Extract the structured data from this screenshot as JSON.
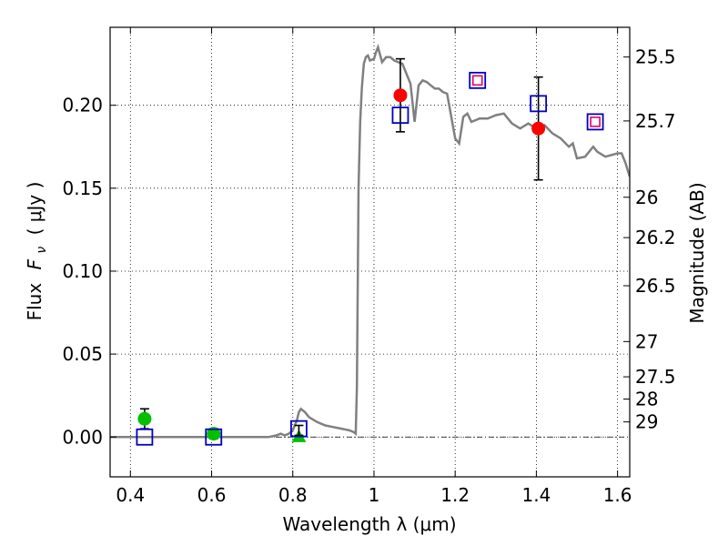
{
  "chart_data": {
    "type": "scatter",
    "xlabel": "Wavelength  λ (μm)",
    "ylabel": "Flux  F_ν  ( μJy )",
    "ylabel_parts": {
      "prefix": "Flux",
      "symbol": "F",
      "subscript": "ν",
      "unit": "( μJy )"
    },
    "y2label": "Magnitude (AB)",
    "xlim": [
      0.35,
      1.63
    ],
    "ylim": [
      -0.024,
      0.247
    ],
    "grid": true,
    "x_ticks": [
      {
        "value": 0.4,
        "label": "0.4"
      },
      {
        "value": 0.6,
        "label": "0.6"
      },
      {
        "value": 0.8,
        "label": "0.8"
      },
      {
        "value": 1.0,
        "label": "1"
      },
      {
        "value": 1.2,
        "label": "1.2"
      },
      {
        "value": 1.4,
        "label": "1.4"
      },
      {
        "value": 1.6,
        "label": "1.6"
      }
    ],
    "y_ticks": [
      {
        "value": 0.0,
        "label": "0.00"
      },
      {
        "value": 0.05,
        "label": "0.05"
      },
      {
        "value": 0.1,
        "label": "0.10"
      },
      {
        "value": 0.15,
        "label": "0.15"
      },
      {
        "value": 0.2,
        "label": "0.20"
      }
    ],
    "y2_ticks": [
      {
        "value": 25.5,
        "label": "25.5"
      },
      {
        "value": 25.7,
        "label": "25.7"
      },
      {
        "value": 26.0,
        "label": "26"
      },
      {
        "value": 26.2,
        "label": "26.2"
      },
      {
        "value": 26.5,
        "label": "26.5"
      },
      {
        "value": 27.0,
        "label": "27"
      },
      {
        "value": 27.5,
        "label": "27.5"
      },
      {
        "value": 28.0,
        "label": "28"
      },
      {
        "value": 29.0,
        "label": "29"
      }
    ],
    "model_spectrum": {
      "color": "#808080",
      "x": [
        0.35,
        0.5,
        0.6,
        0.7,
        0.74,
        0.76,
        0.77,
        0.78,
        0.79,
        0.8,
        0.81,
        0.815,
        0.82,
        0.83,
        0.84,
        0.86,
        0.88,
        0.9,
        0.92,
        0.94,
        0.95,
        0.955,
        0.958,
        0.962,
        0.966,
        0.97,
        0.975,
        0.98,
        0.985,
        0.99,
        1.0,
        1.005,
        1.01,
        1.02,
        1.03,
        1.04,
        1.05,
        1.06,
        1.07,
        1.08,
        1.09,
        1.1,
        1.11,
        1.12,
        1.13,
        1.14,
        1.15,
        1.16,
        1.17,
        1.18,
        1.2,
        1.21,
        1.22,
        1.23,
        1.24,
        1.25,
        1.26,
        1.27,
        1.28,
        1.3,
        1.32,
        1.34,
        1.36,
        1.38,
        1.4,
        1.42,
        1.44,
        1.46,
        1.48,
        1.49,
        1.5,
        1.52,
        1.54,
        1.55,
        1.57,
        1.6,
        1.61,
        1.62,
        1.63
      ],
      "y": [
        0.0,
        0.0,
        0.0,
        0.0,
        0.0,
        0.001,
        0.002,
        0.001,
        0.002,
        0.004,
        0.01,
        0.015,
        0.017,
        0.015,
        0.012,
        0.009,
        0.007,
        0.006,
        0.005,
        0.004,
        0.003,
        0.002,
        0.03,
        0.15,
        0.19,
        0.21,
        0.225,
        0.229,
        0.23,
        0.227,
        0.228,
        0.232,
        0.235,
        0.226,
        0.229,
        0.229,
        0.227,
        0.226,
        0.225,
        0.219,
        0.213,
        0.19,
        0.212,
        0.215,
        0.214,
        0.212,
        0.21,
        0.21,
        0.208,
        0.207,
        0.18,
        0.177,
        0.193,
        0.195,
        0.19,
        0.191,
        0.192,
        0.192,
        0.192,
        0.194,
        0.195,
        0.189,
        0.186,
        0.189,
        0.186,
        0.188,
        0.183,
        0.18,
        0.175,
        0.177,
        0.168,
        0.169,
        0.175,
        0.172,
        0.169,
        0.171,
        0.171,
        0.165,
        0.157
      ]
    },
    "series": [
      {
        "marker": "circle",
        "color": "#00c000",
        "x": [
          0.435,
          0.605
        ],
        "y": [
          0.011,
          0.002
        ],
        "yerr": [
          0.006,
          0.003
        ]
      },
      {
        "marker": "triangle",
        "color": "#00c000",
        "x": [
          0.815
        ],
        "y": [
          0.0
        ],
        "yerr": [
          null
        ]
      },
      {
        "marker": "circle",
        "color": "#ff0000",
        "x": [
          1.065,
          1.405
        ],
        "y": [
          0.206,
          0.186
        ],
        "yerr": [
          0.022,
          0.031
        ]
      },
      {
        "marker": "errorbar-only",
        "color": "#000000",
        "x": [
          0.815
        ],
        "y": [
          0.004
        ],
        "yerr": [
          0.003
        ]
      },
      {
        "marker": "open-square",
        "color": "#0000c0",
        "x": [
          0.435,
          0.605,
          0.815,
          1.065,
          1.255,
          1.405,
          1.545
        ],
        "y": [
          0.0,
          0.0,
          0.005,
          0.194,
          0.215,
          0.201,
          0.19
        ]
      },
      {
        "marker": "small-open-square",
        "color": "#e0006a",
        "x": [
          1.255,
          1.545
        ],
        "y": [
          0.215,
          0.19
        ]
      }
    ]
  }
}
